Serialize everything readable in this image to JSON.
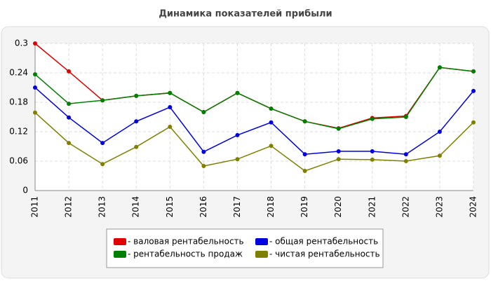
{
  "chart_data": {
    "type": "line",
    "title": "Динамика показателей прибыли",
    "categories": [
      "2011",
      "2012",
      "2013",
      "2014",
      "2015",
      "2016",
      "2017",
      "2018",
      "2019",
      "2020",
      "2021",
      "2022",
      "2023",
      "2024"
    ],
    "series": [
      {
        "name": "- валовая рентабельность",
        "color": "#e00000",
        "values": [
          0.3,
          0.243,
          0.184,
          0.193,
          0.199,
          0.16,
          0.199,
          0.167,
          0.141,
          0.127,
          0.148,
          0.152,
          0.251,
          0.243
        ]
      },
      {
        "name": "- общая рентабельность",
        "color": "#0000e0",
        "values": [
          0.21,
          0.149,
          0.097,
          0.141,
          0.17,
          0.079,
          0.113,
          0.139,
          0.074,
          0.08,
          0.08,
          0.074,
          0.12,
          0.203
        ]
      },
      {
        "name": "- рентабельность продаж",
        "color": "#008000",
        "values": [
          0.237,
          0.177,
          0.184,
          0.193,
          0.199,
          0.16,
          0.199,
          0.167,
          0.141,
          0.126,
          0.146,
          0.15,
          0.251,
          0.243
        ]
      },
      {
        "name": "- чистая рентабельность",
        "color": "#808000",
        "values": [
          0.159,
          0.097,
          0.054,
          0.089,
          0.13,
          0.05,
          0.064,
          0.091,
          0.04,
          0.064,
          0.063,
          0.06,
          0.071,
          0.139
        ]
      }
    ],
    "ylim": [
      0,
      0.3
    ],
    "yticks": [
      0,
      0.06,
      0.12,
      0.18,
      0.24,
      0.3
    ],
    "grid": true
  }
}
